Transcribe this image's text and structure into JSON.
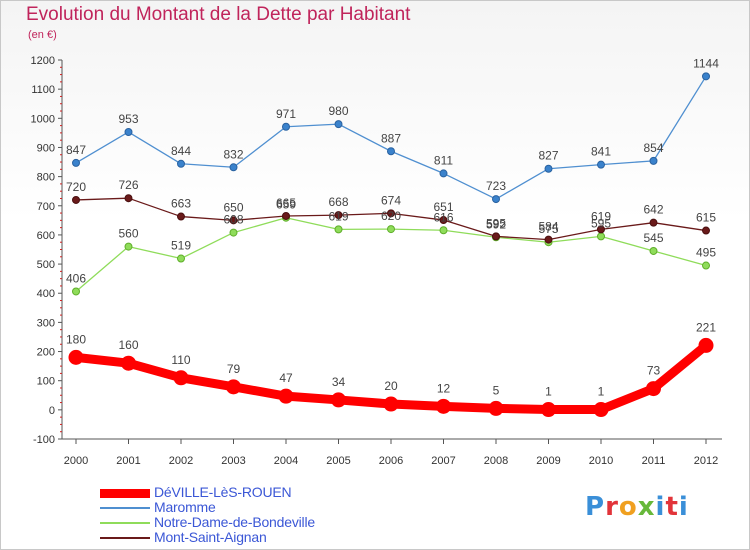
{
  "header": {
    "title": "Evolution du Montant de la Dette par Habitant",
    "subtitle": "(en €)"
  },
  "logo": {
    "text": "Proxiti",
    "letters": [
      "P",
      "r",
      "o",
      "x",
      "i",
      "t",
      "i"
    ]
  },
  "chart_data": {
    "type": "line",
    "title": "Evolution du Montant de la Dette par Habitant",
    "subtitle": "(en €)",
    "x": [
      "2000",
      "2001",
      "2002",
      "2003",
      "2004",
      "2005",
      "2006",
      "2007",
      "2008",
      "2009",
      "2010",
      "2011",
      "2012"
    ],
    "ylim": [
      -100,
      1200
    ],
    "yticks": [
      -100,
      0,
      100,
      200,
      300,
      400,
      500,
      600,
      700,
      800,
      900,
      1000,
      1100,
      1200
    ],
    "grid": false,
    "legend_position": "bottom-left",
    "series": [
      {
        "name": "DéVILLE-LèS-ROUEN",
        "color": "#ff0000",
        "values": [
          180,
          160,
          110,
          79,
          47,
          34,
          20,
          12,
          5,
          1,
          1,
          73,
          221
        ]
      },
      {
        "name": "Maromme",
        "color": "#4f8fd0",
        "values": [
          847,
          953,
          844,
          832,
          971,
          980,
          887,
          811,
          723,
          827,
          841,
          854,
          1144
        ]
      },
      {
        "name": "Notre-Dame-de-Bondeville",
        "color": "#8fdc5a",
        "values": [
          406,
          560,
          519,
          608,
          659,
          619,
          620,
          616,
          592,
          575,
          595,
          545,
          495
        ]
      },
      {
        "name": "Mont-Saint-Aignan",
        "color": "#6a1a1a",
        "values": [
          720,
          726,
          663,
          650,
          665,
          668,
          674,
          651,
          595,
          584,
          619,
          642,
          615
        ]
      }
    ]
  }
}
